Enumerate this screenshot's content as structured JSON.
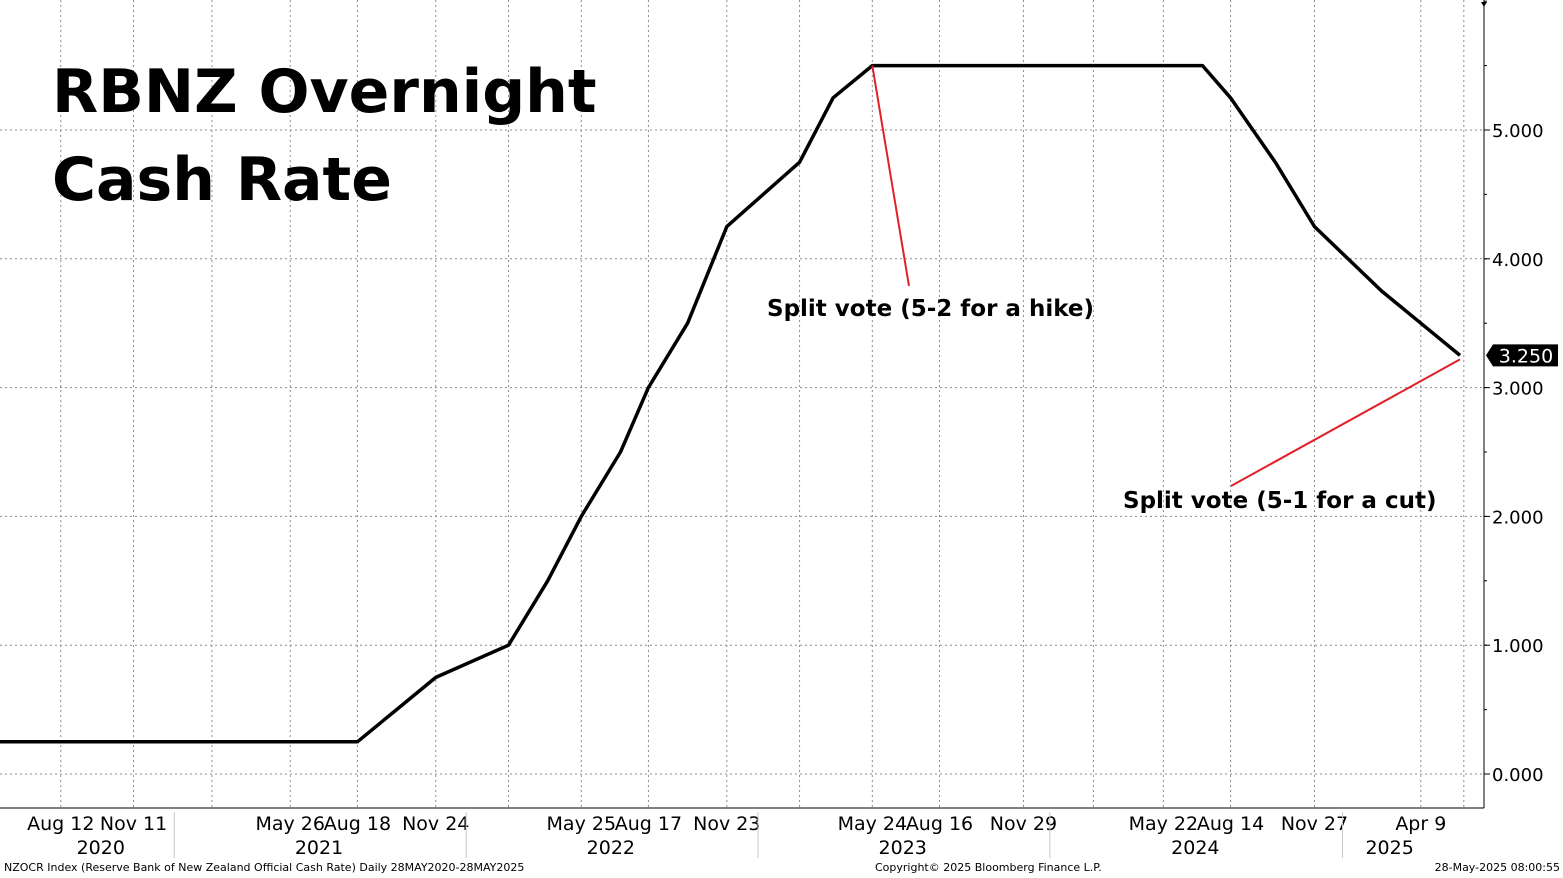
{
  "chart_data": {
    "type": "line",
    "title": "RBNZ Overnight Cash Rate",
    "title_lines": [
      "RBNZ Overnight",
      "Cash Rate"
    ],
    "ylim": [
      -0.25,
      5.95
    ],
    "y_ticks": [
      0,
      1,
      2,
      3,
      4,
      5
    ],
    "y_tick_labels": [
      "0.000",
      "1.000",
      "2.000",
      "3.000",
      "4.000",
      "5.000"
    ],
    "xlim": [
      "2020-05-28",
      "2025-05-28"
    ],
    "grid": true,
    "x_tick_labels": [
      {
        "label": "Aug 12",
        "date": "2020-08-12"
      },
      {
        "label": "Nov 11",
        "date": "2020-11-11"
      },
      {
        "label": "May 26",
        "date": "2021-05-26"
      },
      {
        "label": "Aug 18",
        "date": "2021-08-18"
      },
      {
        "label": "Nov 24",
        "date": "2021-11-24"
      },
      {
        "label": "May 25",
        "date": "2022-05-25"
      },
      {
        "label": "Aug 17",
        "date": "2022-08-17"
      },
      {
        "label": "Nov 23",
        "date": "2022-11-23"
      },
      {
        "label": "May 24",
        "date": "2023-05-24"
      },
      {
        "label": "Aug 16",
        "date": "2023-08-16"
      },
      {
        "label": "Nov 29",
        "date": "2023-11-29"
      },
      {
        "label": "May 22",
        "date": "2024-05-22"
      },
      {
        "label": "Aug 14",
        "date": "2024-08-14"
      },
      {
        "label": "Nov 27",
        "date": "2024-11-27"
      },
      {
        "label": "Apr 9",
        "date": "2025-04-09"
      }
    ],
    "year_labels": [
      {
        "label": "2020",
        "date": "2020-10-01"
      },
      {
        "label": "2021",
        "date": "2021-07-01"
      },
      {
        "label": "2022",
        "date": "2022-07-01"
      },
      {
        "label": "2023",
        "date": "2023-07-01"
      },
      {
        "label": "2024",
        "date": "2024-07-01"
      },
      {
        "label": "2025",
        "date": "2025-03-01"
      }
    ],
    "year_dividers": [
      "2021-01-01",
      "2022-01-01",
      "2023-01-01",
      "2024-01-01",
      "2025-01-01"
    ],
    "series": [
      {
        "color": "#000000",
        "points": [
          {
            "x": "2020-05-28",
            "y": 0.25
          },
          {
            "x": "2021-08-18",
            "y": 0.25
          },
          {
            "x": "2021-10-06",
            "y": 0.5
          },
          {
            "x": "2021-11-24",
            "y": 0.75
          },
          {
            "x": "2022-02-23",
            "y": 1.0
          },
          {
            "x": "2022-04-13",
            "y": 1.5
          },
          {
            "x": "2022-05-25",
            "y": 2.0
          },
          {
            "x": "2022-07-13",
            "y": 2.5
          },
          {
            "x": "2022-08-17",
            "y": 3.0
          },
          {
            "x": "2022-10-05",
            "y": 3.5
          },
          {
            "x": "2022-11-23",
            "y": 4.25
          },
          {
            "x": "2023-02-22",
            "y": 4.75
          },
          {
            "x": "2023-04-05",
            "y": 5.25
          },
          {
            "x": "2023-05-24",
            "y": 5.5
          },
          {
            "x": "2024-07-10",
            "y": 5.5
          },
          {
            "x": "2024-08-14",
            "y": 5.25
          },
          {
            "x": "2024-10-09",
            "y": 4.75
          },
          {
            "x": "2024-11-27",
            "y": 4.25
          },
          {
            "x": "2025-02-19",
            "y": 3.75
          },
          {
            "x": "2025-04-09",
            "y": 3.5
          },
          {
            "x": "2025-05-28",
            "y": 3.25
          }
        ]
      }
    ],
    "last_value_label": "3.250",
    "last_value": 3.25,
    "annotations": [
      {
        "text": "Split vote (5-2 for a hike)",
        "point": {
          "x": "2023-05-24",
          "y": 5.5
        }
      },
      {
        "text": "Split vote (5-1 for a cut)",
        "point": {
          "x": "2025-05-28",
          "y": 3.25
        }
      }
    ],
    "line_color": "#000000",
    "annotation_color": "#e0202a",
    "last_label_bg": "#000000"
  },
  "footer": {
    "left": "NZOCR Index (Reserve Bank of New Zealand Official Cash Rate)  Daily 28MAY2020-28MAY2025",
    "center": "Copyright© 2025 Bloomberg Finance L.P.",
    "right": "28-May-2025 08:00:55"
  }
}
